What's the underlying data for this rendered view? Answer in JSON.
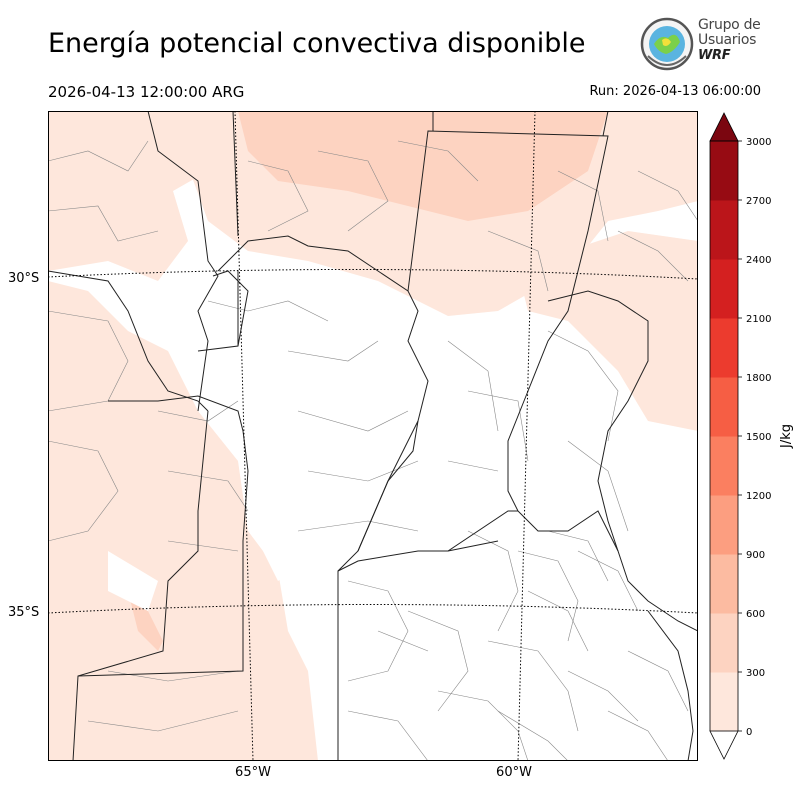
{
  "title": "Energía potencial convectiva disponible",
  "valid_time": "2026-04-13 12:00:00 ARG",
  "run_time": "Run: 2026-04-13 06:00:00",
  "logo": {
    "line1": "Grupo de",
    "line2": "Usuarios",
    "line3": "WRF"
  },
  "map": {
    "lat_labels": [
      "30°S",
      "35°S"
    ],
    "lon_labels": [
      "65°W",
      "60°W"
    ],
    "region": "central Argentina",
    "colors": {
      "boundary": "#222222",
      "subdivision": "#888888",
      "gridline": "#000000"
    }
  },
  "colorbar": {
    "unit": "J/kg",
    "ticks": [
      "0",
      "300",
      "600",
      "900",
      "1200",
      "1500",
      "1800",
      "2100",
      "2400",
      "2700",
      "3000"
    ],
    "colors": [
      "#fee7dc",
      "#fdd3c1",
      "#fcbba1",
      "#fc9e80",
      "#fb7f60",
      "#f65e44",
      "#ec3b2e",
      "#d42020",
      "#bb151a",
      "#970b13",
      "#7b0610"
    ],
    "extend": "both"
  }
}
